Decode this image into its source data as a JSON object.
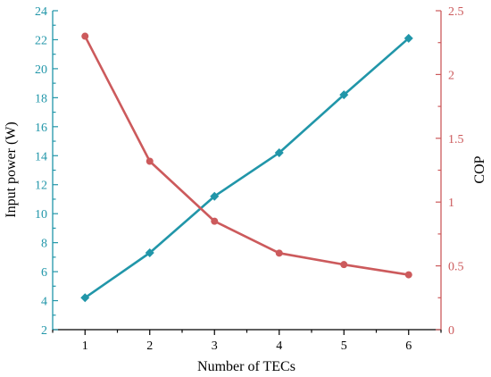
{
  "chart_data": {
    "type": "line",
    "xlabel": "Number of TECs",
    "ylabel_left": "Input power (W)",
    "ylabel_right": "COP",
    "x": [
      1,
      2,
      3,
      4,
      5,
      6
    ],
    "x_ticks": [
      "1",
      "2",
      "3",
      "4",
      "5",
      "6"
    ],
    "xlim": [
      0.5,
      6.5
    ],
    "ylim_left": [
      2,
      24
    ],
    "ylim_right": [
      0,
      2.5
    ],
    "y_left_ticks": [
      "2",
      "4",
      "6",
      "8",
      "10",
      "12",
      "14",
      "16",
      "18",
      "20",
      "22",
      "24"
    ],
    "y_right_ticks": [
      "0",
      "0.5",
      "1",
      "1.5",
      "2",
      "2.5"
    ],
    "grid": false,
    "series": [
      {
        "axis": "left",
        "values": [
          4.2,
          7.3,
          11.2,
          14.2,
          18.2,
          22.1
        ],
        "color": "#2196a9",
        "marker": "diamond"
      },
      {
        "axis": "right",
        "values": [
          2.3,
          1.32,
          0.85,
          0.6,
          0.51,
          0.43
        ],
        "color": "#cc5a5c",
        "marker": "circle"
      }
    ],
    "left_axis_color": "#2196a9",
    "right_axis_color": "#cc5a5c",
    "bottom_axis_color": "#000000"
  }
}
